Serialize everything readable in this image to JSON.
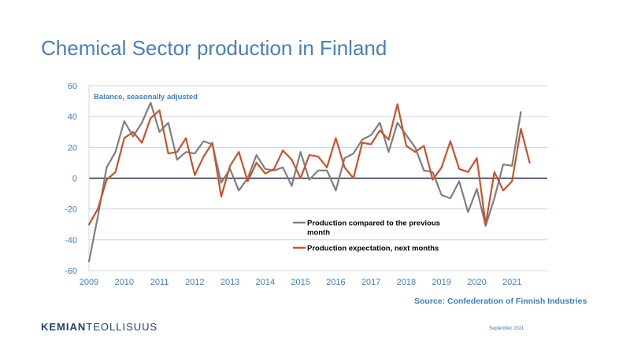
{
  "slide": {
    "title": "Chemical Sector production in Finland",
    "source": "Source: Confederation of Finnish Industries",
    "logo_bold": "KEMIAN",
    "logo_light": "TEOLLISUUS",
    "date": "September 2021"
  },
  "colors": {
    "series_gray": "#7f7f7f",
    "series_orange": "#c8532a",
    "title": "#4a7fb8",
    "axis_labels": "#3d7fc0",
    "zero_line": "#1f2f4f",
    "grid": "#b9cde3"
  },
  "chart_data": {
    "type": "line",
    "title": "",
    "subtitle": "Balance, seasonally adjusted",
    "xlabel": "",
    "ylabel": "",
    "ylim": [
      -60,
      60
    ],
    "yticks": [
      -60,
      -40,
      -20,
      0,
      20,
      40,
      60
    ],
    "xlim": [
      2009,
      2022
    ],
    "xticks": [
      2009,
      2010,
      2011,
      2012,
      2013,
      2014,
      2015,
      2016,
      2017,
      2018,
      2019,
      2020,
      2021
    ],
    "grid": true,
    "legend_position": "center-right",
    "series": [
      {
        "name": "Production compared to the previous month",
        "color": "#7f7f7f",
        "x": [
          2009.0,
          2009.25,
          2009.5,
          2009.75,
          2010.0,
          2010.25,
          2010.5,
          2010.75,
          2011.0,
          2011.25,
          2011.5,
          2011.75,
          2012.0,
          2012.25,
          2012.5,
          2012.75,
          2013.0,
          2013.25,
          2013.5,
          2013.75,
          2014.0,
          2014.25,
          2014.5,
          2014.75,
          2015.0,
          2015.25,
          2015.5,
          2015.75,
          2016.0,
          2016.25,
          2016.5,
          2016.75,
          2017.0,
          2017.25,
          2017.5,
          2017.75,
          2018.0,
          2018.25,
          2018.5,
          2018.75,
          2019.0,
          2019.25,
          2019.5,
          2019.75,
          2020.0,
          2020.25,
          2020.5,
          2020.75,
          2021.0,
          2021.25
        ],
        "y": [
          -54,
          -25,
          7,
          17,
          37,
          27,
          36,
          49,
          30,
          36,
          12,
          17,
          16,
          24,
          22,
          -3,
          6,
          -8,
          0,
          15,
          6,
          5,
          7,
          -5,
          17,
          -1,
          5,
          5,
          -8,
          13,
          16,
          25,
          28,
          36,
          17,
          36,
          28,
          20,
          5,
          4,
          -11,
          -13,
          -2,
          -22,
          -7,
          -31,
          -13,
          9,
          8,
          43
        ]
      },
      {
        "name": "Production expectation, next months",
        "color": "#c8532a",
        "x": [
          2009.0,
          2009.25,
          2009.5,
          2009.75,
          2010.0,
          2010.25,
          2010.5,
          2010.75,
          2011.0,
          2011.25,
          2011.5,
          2011.75,
          2012.0,
          2012.25,
          2012.5,
          2012.75,
          2013.0,
          2013.25,
          2013.5,
          2013.75,
          2014.0,
          2014.25,
          2014.5,
          2014.75,
          2015.0,
          2015.25,
          2015.5,
          2015.75,
          2016.0,
          2016.25,
          2016.5,
          2016.75,
          2017.0,
          2017.25,
          2017.5,
          2017.75,
          2018.0,
          2018.25,
          2018.5,
          2018.75,
          2019.0,
          2019.25,
          2019.5,
          2019.75,
          2020.0,
          2020.25,
          2020.5,
          2020.75,
          2021.0,
          2021.25,
          2021.5
        ],
        "y": [
          -30,
          -20,
          -1,
          4,
          26,
          30,
          23,
          39,
          44,
          16,
          17,
          26,
          2,
          14,
          23,
          -12,
          8,
          17,
          -2,
          10,
          3,
          6,
          18,
          12,
          0,
          15,
          14,
          7,
          26,
          7,
          0,
          23,
          22,
          31,
          25,
          48,
          21,
          17,
          21,
          -1,
          7,
          24,
          6,
          4,
          13,
          -30,
          4,
          -8,
          -2,
          32,
          10
        ]
      }
    ]
  }
}
